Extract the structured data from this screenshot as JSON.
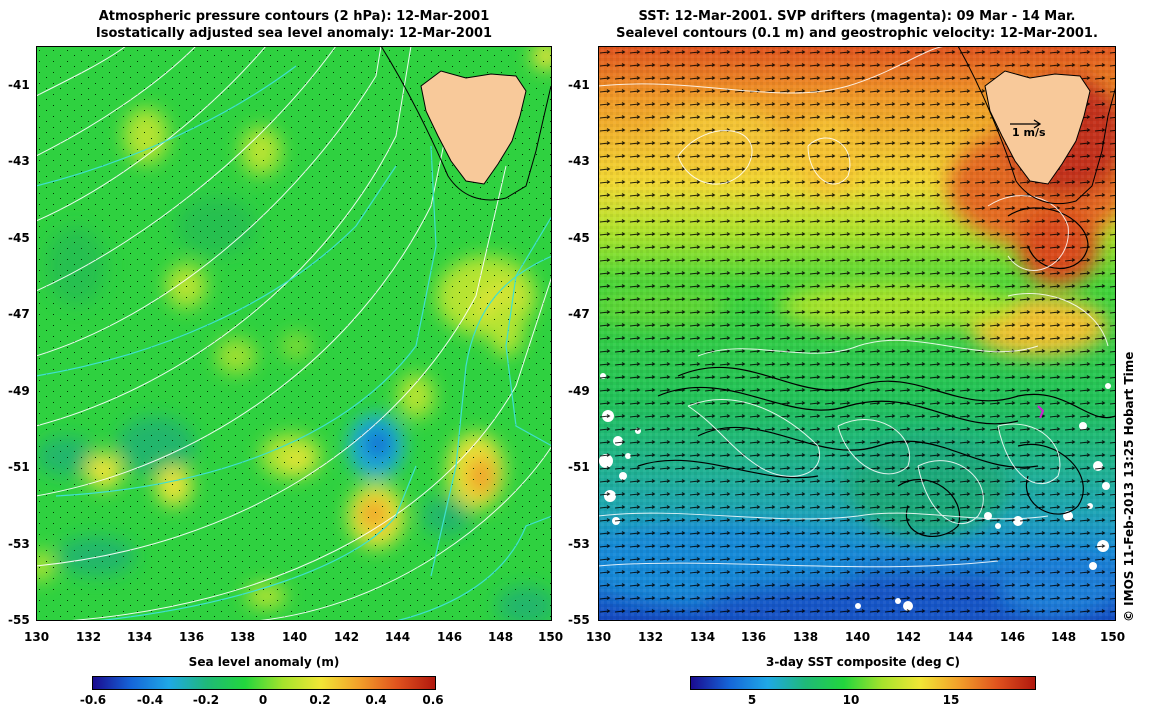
{
  "left_panel": {
    "title_line1": "Atmospheric pressure contours (2 hPa): 12-Mar-2001",
    "title_line2": "Isostatically adjusted sea level anomaly: 12-Mar-2001",
    "colorbar_title": "Sea level anomaly (m)",
    "colorbar_labels": [
      "-0.6",
      "-0.4",
      "-0.2",
      "0",
      "0.2",
      "0.4",
      "0.6"
    ],
    "colormap": [
      "#1a0b8f",
      "#1565d8",
      "#1fa8e6",
      "#1fb978",
      "#22d63d",
      "#a5e32c",
      "#f1e636",
      "#f2a02a",
      "#e0531e",
      "#b0180e"
    ]
  },
  "right_panel": {
    "title_line1": "SST: 12-Mar-2001. SVP drifters (magenta): 09 Mar - 14 Mar.",
    "title_line2": "Sealevel contours (0.1 m) and geostrophic velocity: 12-Mar-2001.",
    "colorbar_title": "3-day SST composite (deg C)",
    "colorbar_labels": [
      "5",
      "10",
      "15"
    ],
    "velocity_scale_label": "1 m/s",
    "colormap": [
      "#1a0b8f",
      "#1565d8",
      "#1fa8e6",
      "#1fb978",
      "#22d63d",
      "#a5e32c",
      "#f1e636",
      "#f2a02a",
      "#e0531e",
      "#b0180e"
    ]
  },
  "axes": {
    "lat_labels": [
      "-41",
      "-43",
      "-45",
      "-47",
      "-49",
      "-51",
      "-53",
      "-55"
    ],
    "lon_labels": [
      "130",
      "132",
      "134",
      "136",
      "138",
      "140",
      "142",
      "144",
      "146",
      "148",
      "150"
    ]
  },
  "credit": "© IMOS 11-Feb-2013 13:25 Hobart Time",
  "colors": {
    "land": "#f8c99a",
    "pressure_contour": "#ffffff",
    "sealevel_contour": "#40e0d0",
    "coastline": "#000000"
  }
}
